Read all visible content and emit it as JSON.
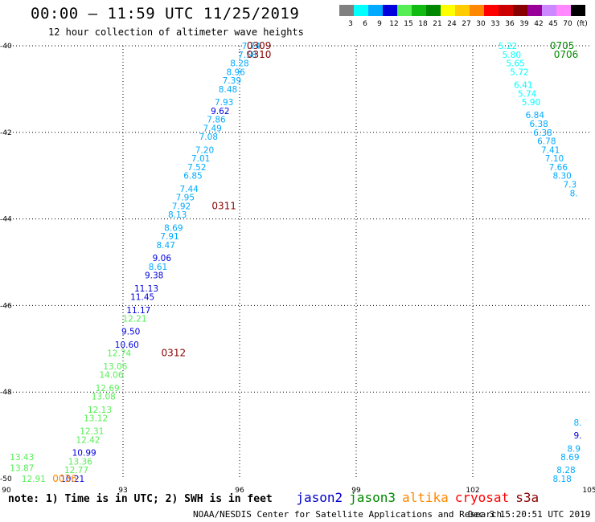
{
  "title": "00:00 – 11:59 UTC 11/25/2019",
  "subtitle": "12 hour collection of altimeter wave heights",
  "colorbar": {
    "labels": [
      "3",
      "6",
      "9",
      "12",
      "15",
      "18",
      "21",
      "24",
      "27",
      "30",
      "33",
      "36",
      "39",
      "42",
      "45",
      "70",
      "(ft)"
    ],
    "colors": [
      "#808080",
      "#00ffff",
      "#00aaff",
      "#0000dd",
      "#55ee55",
      "#11bb11",
      "#008800",
      "#ffff00",
      "#ffcc00",
      "#ff8800",
      "#ff0000",
      "#cc0000",
      "#880000",
      "#990099",
      "#cc88ff",
      "#ff88ff",
      "#000000"
    ]
  },
  "note": "note: 1) Time is in UTC; 2) SWH is in feet",
  "satellites": [
    {
      "name": "jason2",
      "color": "#0000cc"
    },
    {
      "name": "jason3",
      "color": "#008800"
    },
    {
      "name": "altika",
      "color": "#ff8800"
    },
    {
      "name": "cryosat",
      "color": "#ff0000"
    },
    {
      "name": "s3a",
      "color": "#880000"
    }
  ],
  "credit": "NOAA/NESDIS Center for Satellite Applications and Research",
  "date_stamp": "Dec  3 15:20:51 UTC 2019",
  "chart_data": {
    "type": "scatter",
    "title": "00:00 – 11:59 UTC 11/25/2019",
    "xlim": [
      90,
      105
    ],
    "ylim": [
      -50,
      -40
    ],
    "x_ticks": [
      "90",
      "93",
      "96",
      "99",
      "102",
      "105"
    ],
    "y_ticks": [
      "-40",
      "-42",
      "-44",
      "-46",
      "-48",
      "-50"
    ],
    "grid": true,
    "points": [
      {
        "x": 96.3,
        "y": -40.0,
        "v": "7.74",
        "c": "#00aaff"
      },
      {
        "x": 96.2,
        "y": -40.2,
        "v": "7.58",
        "c": "#00aaff"
      },
      {
        "x": 96.0,
        "y": -40.4,
        "v": "8.28",
        "c": "#00aaff"
      },
      {
        "x": 95.9,
        "y": -40.6,
        "v": "8.96",
        "c": "#00aaff"
      },
      {
        "x": 95.8,
        "y": -40.8,
        "v": "7.39",
        "c": "#00aaff"
      },
      {
        "x": 95.7,
        "y": -41.0,
        "v": "8.48",
        "c": "#00aaff"
      },
      {
        "x": 95.6,
        "y": -41.3,
        "v": "7.93",
        "c": "#00aaff"
      },
      {
        "x": 95.5,
        "y": -41.5,
        "v": "9.62",
        "c": "#0000dd"
      },
      {
        "x": 95.4,
        "y": -41.7,
        "v": "7.86",
        "c": "#00aaff"
      },
      {
        "x": 95.3,
        "y": -41.9,
        "v": "7.49",
        "c": "#00aaff"
      },
      {
        "x": 95.2,
        "y": -42.1,
        "v": "7.08",
        "c": "#00aaff"
      },
      {
        "x": 95.1,
        "y": -42.4,
        "v": "7.20",
        "c": "#00aaff"
      },
      {
        "x": 95.0,
        "y": -42.6,
        "v": "7.01",
        "c": "#00aaff"
      },
      {
        "x": 94.9,
        "y": -42.8,
        "v": "7.52",
        "c": "#00aaff"
      },
      {
        "x": 94.8,
        "y": -43.0,
        "v": "6.85",
        "c": "#00aaff"
      },
      {
        "x": 94.7,
        "y": -43.3,
        "v": "7.44",
        "c": "#00aaff"
      },
      {
        "x": 94.6,
        "y": -43.5,
        "v": "7.95",
        "c": "#00aaff"
      },
      {
        "x": 94.5,
        "y": -43.7,
        "v": "7.92",
        "c": "#00aaff"
      },
      {
        "x": 94.4,
        "y": -43.9,
        "v": "8.13",
        "c": "#00aaff"
      },
      {
        "x": 94.3,
        "y": -44.2,
        "v": "8.69",
        "c": "#00aaff"
      },
      {
        "x": 94.2,
        "y": -44.4,
        "v": "7.91",
        "c": "#00aaff"
      },
      {
        "x": 94.1,
        "y": -44.6,
        "v": "8.47",
        "c": "#00aaff"
      },
      {
        "x": 94.0,
        "y": -44.9,
        "v": "9.06",
        "c": "#0000dd"
      },
      {
        "x": 93.9,
        "y": -45.1,
        "v": "8.61",
        "c": "#00aaff"
      },
      {
        "x": 93.8,
        "y": -45.3,
        "v": "9.38",
        "c": "#0000dd"
      },
      {
        "x": 93.6,
        "y": -45.6,
        "v": "11.13",
        "c": "#0000dd"
      },
      {
        "x": 93.5,
        "y": -45.8,
        "v": "11.45",
        "c": "#0000dd"
      },
      {
        "x": 93.4,
        "y": -46.1,
        "v": "11.17",
        "c": "#0000dd"
      },
      {
        "x": 93.3,
        "y": -46.3,
        "v": "12.21",
        "c": "#55ee55"
      },
      {
        "x": 93.2,
        "y": -46.6,
        "v": "9.50",
        "c": "#0000dd"
      },
      {
        "x": 93.1,
        "y": -46.9,
        "v": "10.60",
        "c": "#0000dd"
      },
      {
        "x": 92.9,
        "y": -47.1,
        "v": "12.74",
        "c": "#55ee55"
      },
      {
        "x": 92.8,
        "y": -47.4,
        "v": "13.06",
        "c": "#55ee55"
      },
      {
        "x": 92.7,
        "y": -47.6,
        "v": "14.06",
        "c": "#55ee55"
      },
      {
        "x": 92.6,
        "y": -47.9,
        "v": "12.69",
        "c": "#55ee55"
      },
      {
        "x": 92.5,
        "y": -48.1,
        "v": "13.08",
        "c": "#55ee55"
      },
      {
        "x": 92.4,
        "y": -48.4,
        "v": "12.13",
        "c": "#55ee55"
      },
      {
        "x": 92.3,
        "y": -48.6,
        "v": "13.12",
        "c": "#55ee55"
      },
      {
        "x": 92.2,
        "y": -48.9,
        "v": "12.31",
        "c": "#55ee55"
      },
      {
        "x": 92.1,
        "y": -49.1,
        "v": "12.42",
        "c": "#55ee55"
      },
      {
        "x": 92.0,
        "y": -49.4,
        "v": "10.99",
        "c": "#0000dd"
      },
      {
        "x": 91.9,
        "y": -49.6,
        "v": "13.36",
        "c": "#55ee55"
      },
      {
        "x": 91.8,
        "y": -49.8,
        "v": "12.77",
        "c": "#55ee55"
      },
      {
        "x": 91.7,
        "y": -50.0,
        "v": "10.21",
        "c": "#0000dd"
      },
      {
        "x": 90.4,
        "y": -49.5,
        "v": "13.43",
        "c": "#55ee55"
      },
      {
        "x": 90.4,
        "y": -49.75,
        "v": "13.87",
        "c": "#55ee55"
      },
      {
        "x": 90.7,
        "y": -50.0,
        "v": "12.91",
        "c": "#55ee55"
      },
      {
        "x": 102.9,
        "y": -40.0,
        "v": "5.22",
        "c": "#00ffff"
      },
      {
        "x": 103.0,
        "y": -40.2,
        "v": "5.80",
        "c": "#00ffff"
      },
      {
        "x": 103.1,
        "y": -40.4,
        "v": "5.65",
        "c": "#00ffff"
      },
      {
        "x": 103.2,
        "y": -40.6,
        "v": "5.72",
        "c": "#00ffff"
      },
      {
        "x": 103.3,
        "y": -40.9,
        "v": "6.41",
        "c": "#00ffff"
      },
      {
        "x": 103.4,
        "y": -41.1,
        "v": "5.74",
        "c": "#00ffff"
      },
      {
        "x": 103.5,
        "y": -41.3,
        "v": "5.90",
        "c": "#00ffff"
      },
      {
        "x": 103.6,
        "y": -41.6,
        "v": "6.84",
        "c": "#00aaff"
      },
      {
        "x": 103.7,
        "y": -41.8,
        "v": "6.38",
        "c": "#00aaff"
      },
      {
        "x": 103.8,
        "y": -42.0,
        "v": "6.38",
        "c": "#00aaff"
      },
      {
        "x": 103.9,
        "y": -42.2,
        "v": "6.78",
        "c": "#00aaff"
      },
      {
        "x": 104.0,
        "y": -42.4,
        "v": "7.41",
        "c": "#00aaff"
      },
      {
        "x": 104.1,
        "y": -42.6,
        "v": "7.10",
        "c": "#00aaff"
      },
      {
        "x": 104.2,
        "y": -42.8,
        "v": "7.66",
        "c": "#00aaff"
      },
      {
        "x": 104.3,
        "y": -43.0,
        "v": "8.30",
        "c": "#00aaff"
      },
      {
        "x": 104.5,
        "y": -43.2,
        "v": "7.3",
        "c": "#00aaff"
      },
      {
        "x": 104.6,
        "y": -43.4,
        "v": "8.",
        "c": "#00aaff"
      },
      {
        "x": 104.7,
        "y": -48.7,
        "v": "8.",
        "c": "#00aaff"
      },
      {
        "x": 104.7,
        "y": -49.0,
        "v": "9.",
        "c": "#0000dd"
      },
      {
        "x": 104.6,
        "y": -49.3,
        "v": "8.9",
        "c": "#00aaff"
      },
      {
        "x": 104.5,
        "y": -49.5,
        "v": "8.69",
        "c": "#00aaff"
      },
      {
        "x": 104.4,
        "y": -49.8,
        "v": "8.28",
        "c": "#00aaff"
      },
      {
        "x": 104.3,
        "y": -50.0,
        "v": "8.18",
        "c": "#00aaff"
      }
    ],
    "time_labels": [
      {
        "x": 96.5,
        "y": -40.0,
        "v": "0309",
        "c": "#880000"
      },
      {
        "x": 96.5,
        "y": -40.2,
        "v": "0310",
        "c": "#880000"
      },
      {
        "x": 95.6,
        "y": -43.7,
        "v": "0311",
        "c": "#880000"
      },
      {
        "x": 94.3,
        "y": -47.1,
        "v": "0312",
        "c": "#880000"
      },
      {
        "x": 91.5,
        "y": -50.0,
        "v": "0036",
        "c": "#ff8800"
      },
      {
        "x": 104.3,
        "y": -40.0,
        "v": "0705",
        "c": "#008800"
      },
      {
        "x": 104.4,
        "y": -40.2,
        "v": "0706",
        "c": "#008800"
      }
    ]
  }
}
